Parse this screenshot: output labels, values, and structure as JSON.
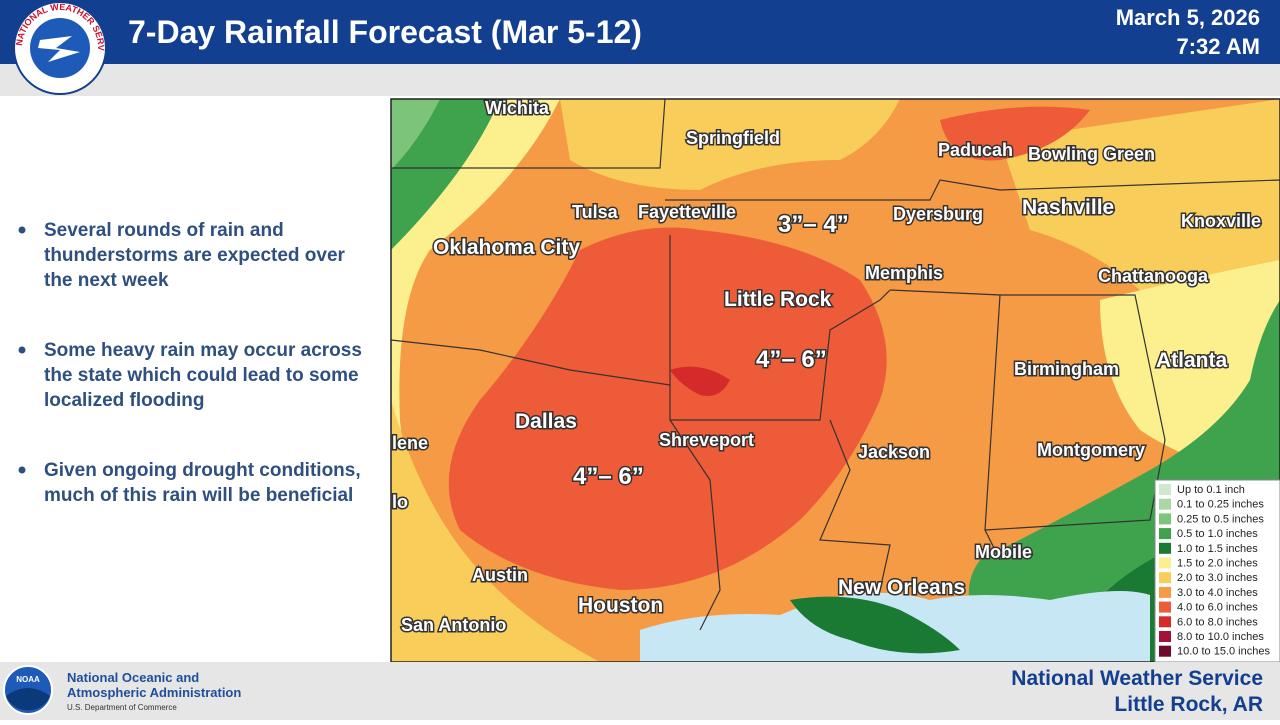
{
  "header": {
    "title": "7-Day Rainfall Forecast (Mar 5-12)",
    "date": "March 5, 2026",
    "time": "7:32 AM",
    "logo_text": "NATIONAL WEATHER SERVICE"
  },
  "bullets": [
    "Several rounds of rain and thunderstorms are expected over the next week",
    "Some heavy rain may occur across the state which could lead to some localized flooding",
    "Given ongoing drought conditions, much of this rain will be beneficial"
  ],
  "map": {
    "cities": [
      "Wichita",
      "Springfield",
      "Paducah",
      "Bowling Green",
      "Tulsa",
      "Fayetteville",
      "Dyersburg",
      "Nashville",
      "Knoxville",
      "Oklahoma City",
      "Memphis",
      "Chattanooga",
      "Little Rock",
      "Birmingham",
      "Atlanta",
      "Dallas",
      "Shreveport",
      "Jackson",
      "Montgomery",
      "lene",
      "lo",
      "Austin",
      "Mobile",
      "New Orleans",
      "Houston",
      "San Antonio"
    ],
    "annotations": [
      "3”– 4”",
      "4”– 6”",
      "4”– 6”"
    ],
    "legend": [
      {
        "label": "Up to 0.1 inch",
        "color": "#cfe8cf"
      },
      {
        "label": "0.1 to 0.25 inches",
        "color": "#a9d8a5"
      },
      {
        "label": "0.25 to 0.5 inches",
        "color": "#7cc47a"
      },
      {
        "label": "0.5 to 1.0 inches",
        "color": "#3fa34d"
      },
      {
        "label": "1.0 to 1.5 inches",
        "color": "#1a7a33"
      },
      {
        "label": "1.5 to 2.0 inches",
        "color": "#fbef8e"
      },
      {
        "label": "2.0 to 3.0 inches",
        "color": "#f9cd5a"
      },
      {
        "label": "3.0 to 4.0 inches",
        "color": "#f59a45"
      },
      {
        "label": "4.0 to 6.0 inches",
        "color": "#ee5b38"
      },
      {
        "label": "6.0 to 8.0 inches",
        "color": "#d42a2a"
      },
      {
        "label": "8.0 to 10.0 inches",
        "color": "#a3123a"
      },
      {
        "label": "10.0 to 15.0 inches",
        "color": "#6e0a2a"
      }
    ]
  },
  "footer": {
    "agency": [
      "National Oceanic and",
      "Atmospheric Administration"
    ],
    "department": "U.S. Department of Commerce",
    "noaa": "NOAA",
    "office": [
      "National Weather Service",
      "Little Rock, AR"
    ]
  }
}
